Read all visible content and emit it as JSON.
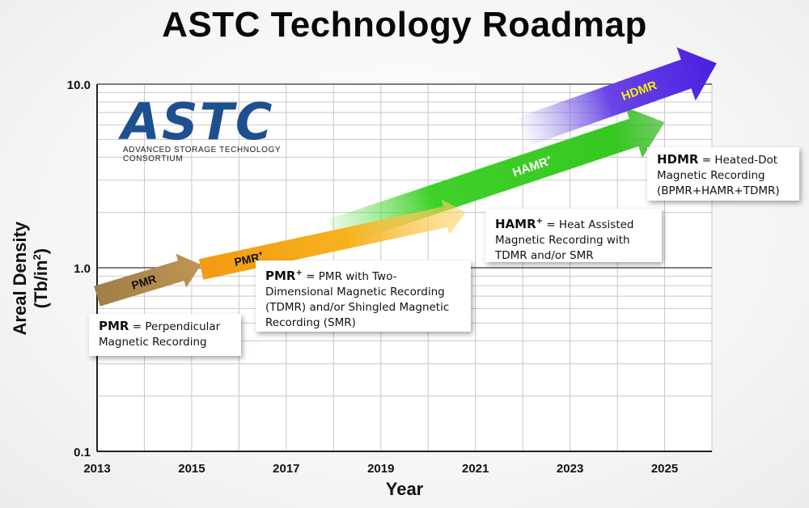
{
  "title": "ASTC Technology Roadmap",
  "logo": {
    "name": "ASTC",
    "subtitle": "ADVANCED STORAGE TECHNOLOGY CONSORTIUM"
  },
  "colors": {
    "pmr": "#b08a4a",
    "pmr_plus": "#f5a81c",
    "hamr_plus": "#3ed12a",
    "hdmr": "#5a2be0",
    "hdmr_label": "#f5f00a",
    "logo_blue": "#1d4f91"
  },
  "definitions": [
    {
      "term": "PMR",
      "sup": "",
      "desc_lines": [
        "= Perpendicular",
        "Magnetic Recording"
      ]
    },
    {
      "term": "PMR",
      "sup": "+",
      "desc_lines": [
        "= PMR with Two-",
        "Dimensional Magnetic Recording",
        "(TDMR) and/or Shingled Magnetic",
        "Recording (SMR)"
      ]
    },
    {
      "term": "HAMR",
      "sup": "+",
      "desc_lines": [
        "= Heat Assisted",
        "Magnetic Recording with",
        "TDMR and/or SMR"
      ]
    },
    {
      "term": "HDMR",
      "sup": "",
      "desc_lines": [
        "= Heated-Dot",
        "Magnetic Recording",
        "(BPMR+HAMR+TDMR)"
      ]
    }
  ],
  "chart_data": {
    "type": "line",
    "title": "ASTC Technology Roadmap",
    "xlabel": "Year",
    "ylabel": "Areal Density (Tb/in²)",
    "ylabel_parts": {
      "base": "Areal Density (Tb/in",
      "sup": "2",
      "tail": ")"
    },
    "xlim": [
      2013,
      2026
    ],
    "ylim": [
      0.1,
      10.0
    ],
    "y_scale": "log",
    "grid": true,
    "xticks": [
      "2013",
      "2015",
      "2017",
      "2019",
      "2021",
      "2023",
      "2025"
    ],
    "xtick_values": [
      2013,
      2015,
      2017,
      2019,
      2021,
      2023,
      2025
    ],
    "yticks": [
      "0.1",
      "1.0",
      "10.0"
    ],
    "ytick_values": [
      0.1,
      1.0,
      10.0
    ],
    "series": [
      {
        "name": "PMR",
        "label": "PMR",
        "sup": "",
        "x": [
          2013.0,
          2015.2
        ],
        "y": [
          0.7,
          1.04
        ]
      },
      {
        "name": "PMR+",
        "label": "PMR",
        "sup": "+",
        "x": [
          2015.2,
          2020.8
        ],
        "y": [
          0.98,
          2.0
        ]
      },
      {
        "name": "HAMR+",
        "label": "HAMR",
        "sup": "+",
        "x": [
          2018.0,
          2025.0
        ],
        "y": [
          1.55,
          6.2
        ]
      },
      {
        "name": "HDMR",
        "label": "HDMR",
        "sup": "",
        "x": [
          2022.0,
          2026.1
        ],
        "y": [
          5.5,
          13.0
        ]
      }
    ]
  }
}
